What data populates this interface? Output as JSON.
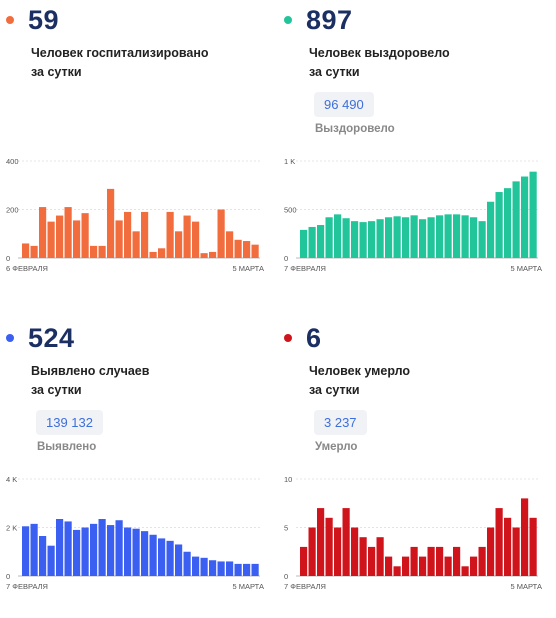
{
  "panels": [
    {
      "value": "59",
      "desc": [
        "Человек госпитализировано",
        "за сутки"
      ],
      "total": "",
      "total_label": "",
      "color": "#f26d3d",
      "chart_data": {
        "type": "bar",
        "ylim": [
          0,
          400
        ],
        "yticks": [
          "400",
          "200",
          "0"
        ],
        "ytick_values": [
          400,
          200,
          0
        ],
        "x_start_label": "6 ФЕВРАЛЯ",
        "x_end_label": "5 МАРТА",
        "values": [
          60,
          50,
          210,
          150,
          175,
          210,
          155,
          185,
          50,
          50,
          285,
          155,
          190,
          110,
          190,
          25,
          40,
          190,
          110,
          175,
          150,
          20,
          25,
          200,
          110,
          75,
          70,
          55
        ]
      }
    },
    {
      "value": "897",
      "desc": [
        "Человек выздоровело",
        "за сутки"
      ],
      "total": "96 490",
      "total_label": "Выздоровело",
      "color": "#22c59a",
      "chart_data": {
        "type": "bar",
        "ylim": [
          0,
          1000
        ],
        "yticks": [
          "1 K",
          "500",
          "0"
        ],
        "ytick_values": [
          1000,
          500,
          0
        ],
        "x_start_label": "7 ФЕВРАЛЯ",
        "x_end_label": "5 МАРТА",
        "values": [
          290,
          320,
          340,
          420,
          450,
          410,
          380,
          370,
          380,
          400,
          420,
          430,
          420,
          440,
          400,
          420,
          440,
          450,
          450,
          440,
          420,
          380,
          580,
          680,
          720,
          790,
          840,
          890
        ]
      }
    },
    {
      "value": "524",
      "desc": [
        "Выявлено случаев",
        "за сутки"
      ],
      "total": "139 132",
      "total_label": "Выявлено",
      "color": "#3b5ff0",
      "chart_data": {
        "type": "bar",
        "ylim": [
          0,
          4000
        ],
        "yticks": [
          "4 K",
          "2 K",
          "0"
        ],
        "ytick_values": [
          4000,
          2000,
          0
        ],
        "x_start_label": "7 ФЕВРАЛЯ",
        "x_end_label": "5 МАРТА",
        "values": [
          2050,
          2150,
          1650,
          1250,
          2350,
          2250,
          1900,
          2000,
          2150,
          2350,
          2100,
          2300,
          2000,
          1950,
          1850,
          1700,
          1550,
          1450,
          1300,
          1000,
          800,
          750,
          650,
          600,
          600,
          500,
          500,
          500
        ]
      }
    },
    {
      "value": "6",
      "desc": [
        "Человек умерло",
        "за сутки"
      ],
      "total": "3 237",
      "total_label": "Умерло",
      "color": "#d0141c",
      "chart_data": {
        "type": "bar",
        "ylim": [
          0,
          10
        ],
        "yticks": [
          "10",
          "5",
          "0"
        ],
        "ytick_values": [
          10,
          5,
          0
        ],
        "x_start_label": "7 ФЕВРАЛЯ",
        "x_end_label": "5 МАРТА",
        "values": [
          3,
          5,
          7,
          6,
          5,
          7,
          5,
          4,
          3,
          4,
          2,
          1,
          2,
          3,
          2,
          3,
          3,
          2,
          3,
          1,
          2,
          3,
          5,
          7,
          6,
          5,
          8,
          6
        ]
      }
    }
  ]
}
